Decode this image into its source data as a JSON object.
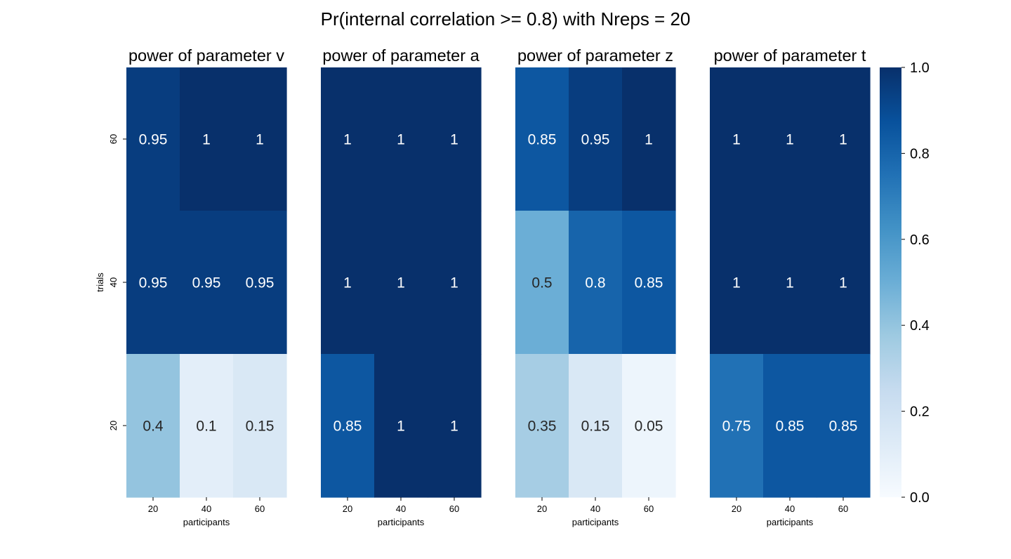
{
  "figure": {
    "suptitle": "Pr(internal correlation >= 0.8) with Nreps = 20"
  },
  "colorbar": {
    "range": [
      0,
      1
    ],
    "ticks": [
      "0.0",
      "0.2",
      "0.4",
      "0.6",
      "0.8",
      "1.0"
    ],
    "colormap": "Blues",
    "stops": [
      "#f7fbff",
      "#deebf7",
      "#c6dbef",
      "#9ecae1",
      "#6baed6",
      "#4292c6",
      "#2171b5",
      "#08519c",
      "#08306b"
    ]
  },
  "chart_data": [
    {
      "type": "heatmap",
      "title": "power of parameter v",
      "xlabel": "participants",
      "ylabel": "trials",
      "x_categories": [
        "20",
        "40",
        "60"
      ],
      "y_categories": [
        "60",
        "40",
        "20"
      ],
      "values": [
        [
          0.95,
          1,
          1
        ],
        [
          0.95,
          0.95,
          0.95
        ],
        [
          0.4,
          0.1,
          0.15
        ]
      ],
      "labels": [
        [
          "0.95",
          "1",
          "1"
        ],
        [
          "0.95",
          "0.95",
          "0.95"
        ],
        [
          "0.4",
          "0.1",
          "0.15"
        ]
      ]
    },
    {
      "type": "heatmap",
      "title": "power of parameter a",
      "xlabel": "participants",
      "ylabel": "",
      "x_categories": [
        "20",
        "40",
        "60"
      ],
      "y_categories": [
        "60",
        "40",
        "20"
      ],
      "values": [
        [
          1,
          1,
          1
        ],
        [
          1,
          1,
          1
        ],
        [
          0.85,
          1,
          1
        ]
      ],
      "labels": [
        [
          "1",
          "1",
          "1"
        ],
        [
          "1",
          "1",
          "1"
        ],
        [
          "0.85",
          "1",
          "1"
        ]
      ]
    },
    {
      "type": "heatmap",
      "title": "power of parameter z",
      "xlabel": "participants",
      "ylabel": "",
      "x_categories": [
        "20",
        "40",
        "60"
      ],
      "y_categories": [
        "60",
        "40",
        "20"
      ],
      "values": [
        [
          0.85,
          0.95,
          1
        ],
        [
          0.5,
          0.8,
          0.85
        ],
        [
          0.35,
          0.15,
          0.05
        ]
      ],
      "labels": [
        [
          "0.85",
          "0.95",
          "1"
        ],
        [
          "0.5",
          "0.8",
          "0.85"
        ],
        [
          "0.35",
          "0.15",
          "0.05"
        ]
      ]
    },
    {
      "type": "heatmap",
      "title": "power of parameter t",
      "xlabel": "participants",
      "ylabel": "",
      "x_categories": [
        "20",
        "40",
        "60"
      ],
      "y_categories": [
        "60",
        "40",
        "20"
      ],
      "values": [
        [
          1,
          1,
          1
        ],
        [
          1,
          1,
          1
        ],
        [
          0.75,
          0.85,
          0.85
        ]
      ],
      "labels": [
        [
          "1",
          "1",
          "1"
        ],
        [
          "1",
          "1",
          "1"
        ],
        [
          "0.75",
          "0.85",
          "0.85"
        ]
      ]
    }
  ]
}
